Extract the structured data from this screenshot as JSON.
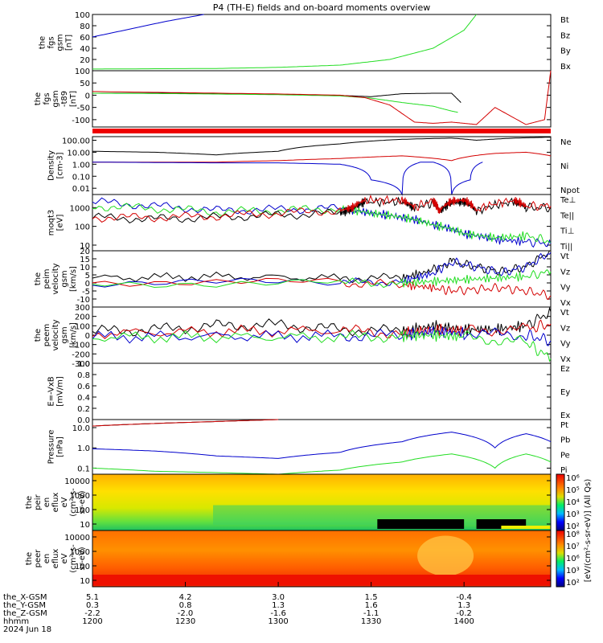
{
  "title": "P4 (TH-E) fields and on-board moments overview",
  "date": "2024 Jun 18",
  "colors": {
    "black": "#000000",
    "red": "#d40000",
    "green": "#22dd22",
    "blue": "#0000cc"
  },
  "chart_data": {
    "type": "line",
    "x_axis": {
      "times": [
        "1200",
        "1230",
        "1300",
        "1330",
        "1400"
      ],
      "rows": [
        {
          "label": "the_X-GSM",
          "values": [
            "5.1",
            "4.2",
            "3.0",
            "1.5",
            "-0.4"
          ]
        },
        {
          "label": "the_Y-GSM",
          "values": [
            "0.3",
            "0.8",
            "1.3",
            "1.6",
            "1.3"
          ]
        },
        {
          "label": "the_Z-GSM",
          "values": [
            "-2.2",
            "-2.0",
            "-1.6",
            "-1.1",
            "-0.2"
          ]
        },
        {
          "label": "hhmm",
          "values": [
            "1200",
            "1230",
            "1300",
            "1330",
            "1400"
          ]
        }
      ]
    },
    "panels": [
      {
        "id": "fgs",
        "ylabel": [
          "the",
          "fgs",
          "gsm",
          "[nT]"
        ],
        "ylim": [
          0,
          100
        ],
        "ticks": [
          "100",
          "80",
          "60",
          "40",
          "20"
        ],
        "legend": [
          {
            "name": "Bt",
            "color": "black"
          },
          {
            "name": "Bz",
            "color": "red"
          },
          {
            "name": "By",
            "color": "green"
          },
          {
            "name": "Bx",
            "color": "blue"
          }
        ],
        "series": [
          {
            "name": "Bx",
            "color": "blue",
            "t": [
              0,
              6,
              12,
              18
            ],
            "y": [
              60,
              74,
              88,
              100
            ]
          },
          {
            "name": "By",
            "color": "green",
            "t": [
              0,
              20,
              30,
              40,
              48,
              55,
              60,
              62
            ],
            "y": [
              3,
              4,
              6,
              10,
              20,
              40,
              72,
              100
            ]
          }
        ]
      },
      {
        "id": "fgs_dsl",
        "ylabel": [
          "the",
          "fgs",
          "gsm",
          "-t89",
          "[nT]"
        ],
        "ylim": [
          -130,
          100
        ],
        "ticks": [
          "100",
          "50",
          "0",
          "-50",
          "-100"
        ],
        "series": [
          {
            "name": "Bt",
            "color": "black",
            "t": [
              0,
              15,
              30,
              40,
              45,
              50,
              55,
              58,
              59.5
            ],
            "y": [
              8,
              8,
              3,
              -1,
              -6,
              6,
              8,
              8,
              -30
            ]
          },
          {
            "name": "By",
            "color": "green",
            "t": [
              0,
              15,
              30,
              40,
              45,
              50,
              55,
              58,
              59
            ],
            "y": [
              8,
              6,
              2,
              -3,
              -12,
              -30,
              -45,
              -65,
              -70
            ]
          },
          {
            "name": "Bz",
            "color": "red",
            "t": [
              0,
              15,
              30,
              40,
              44,
              48,
              52,
              55,
              58,
              62,
              65,
              70,
              73,
              74
            ],
            "y": [
              15,
              10,
              5,
              0,
              -10,
              -40,
              -110,
              -115,
              -110,
              -120,
              -50,
              -120,
              -100,
              100
            ]
          }
        ]
      },
      {
        "id": "density",
        "ylabel": [
          "Density",
          "[cm-3]"
        ],
        "log": true,
        "ylim": [
          0.003,
          200
        ],
        "ticks": [
          "100.00",
          "10.00",
          "1.00",
          "0.10",
          "0.01"
        ],
        "legend": [
          {
            "name": "Ne",
            "color": "red"
          },
          {
            "name": "Ni",
            "color": "black"
          },
          {
            "name": "Npot",
            "color": "blue"
          }
        ],
        "series": [
          {
            "name": "Ni",
            "color": "black",
            "t": [
              0,
              10,
              20,
              30,
              40,
              50,
              58,
              62,
              68,
              74
            ],
            "y": [
              12,
              10,
              6,
              12,
              50,
              120,
              150,
              100,
              150,
              180
            ]
          },
          {
            "name": "Ne",
            "color": "red",
            "t": [
              0,
              10,
              20,
              30,
              40,
              50,
              58,
              65,
              70,
              74
            ],
            "y": [
              1.5,
              1.5,
              1.5,
              2,
              3,
              5,
              2,
              8,
              10,
              5
            ]
          },
          {
            "name": "Npot",
            "color": "blue",
            "t": [
              0,
              20,
              30,
              40,
              45,
              50,
              53,
              55,
              58,
              61,
              63
            ],
            "y": [
              1.5,
              1.3,
              1.3,
              1,
              0.05,
              0.003,
              1.5,
              1.5,
              0.003,
              0.05,
              1.5
            ]
          }
        ]
      },
      {
        "id": "temp",
        "ylabel": [
          "moqt3",
          "[eV]"
        ],
        "log": true,
        "ylim": [
          5,
          5000
        ],
        "ticks": [
          "1000",
          "100",
          "10"
        ],
        "legend": [
          {
            "name": "Te⊥",
            "color": "red"
          },
          {
            "name": "Te||",
            "color": "black"
          },
          {
            "name": "Ti⊥",
            "color": "blue"
          },
          {
            "name": "Ti||",
            "color": "green"
          }
        ],
        "series": [
          {
            "name": "Ti⊥",
            "color": "blue",
            "t": [
              0,
              10,
              20,
              30,
              40,
              45,
              50,
              55,
              60,
              65,
              70,
              74
            ],
            "y": [
              2000,
              1200,
              700,
              800,
              900,
              500,
              300,
              120,
              40,
              20,
              15,
              12
            ]
          },
          {
            "name": "Ti||",
            "color": "green",
            "t": [
              0,
              10,
              20,
              30,
              40,
              45,
              50,
              55,
              60,
              65,
              70,
              74
            ],
            "y": [
              1200,
              900,
              600,
              700,
              900,
              500,
              300,
              120,
              40,
              25,
              30,
              15
            ]
          },
          {
            "name": "Te||",
            "color": "black",
            "t": [
              0,
              10,
              20,
              30,
              40,
              42,
              44,
              50,
              52,
              55,
              56,
              58,
              60,
              62,
              68,
              70,
              74
            ],
            "y": [
              300,
              250,
              300,
              400,
              500,
              800,
              2000,
              2000,
              900,
              1800,
              500,
              1800,
              2000,
              600,
              2000,
              1000,
              1000
            ]
          },
          {
            "name": "Te⊥",
            "color": "red",
            "t": [
              0,
              10,
              20,
              30,
              40,
              42,
              44,
              50,
              52,
              55,
              56,
              58,
              60,
              62,
              68,
              70,
              74
            ],
            "y": [
              300,
              300,
              350,
              500,
              700,
              1000,
              2500,
              2500,
              1000,
              2200,
              600,
              2200,
              2500,
              700,
              2500,
              1200,
              1200
            ]
          }
        ]
      },
      {
        "id": "peim",
        "ylabel": [
          "the",
          "peim",
          "velocity",
          "gsm",
          "[km/s]"
        ],
        "ylim": [
          -15,
          20
        ],
        "ticks": [
          "20",
          "15",
          "10",
          "5",
          "0",
          "-5",
          "-10"
        ],
        "legend": [
          {
            "name": "Vt",
            "color": "black"
          },
          {
            "name": "Vz",
            "color": "red"
          },
          {
            "name": "Vy",
            "color": "green"
          },
          {
            "name": "Vx",
            "color": "blue"
          }
        ],
        "series": [
          {
            "name": "Vt",
            "color": "black",
            "t": [
              0,
              20,
              40,
              50,
              55,
              58,
              62,
              66,
              70,
              74
            ],
            "y": [
              3,
              4,
              3,
              3,
              8,
              13,
              10,
              7,
              10,
              20
            ]
          },
          {
            "name": "Vx",
            "color": "blue",
            "t": [
              0,
              40,
              50,
              55,
              58,
              62,
              66,
              70,
              74
            ],
            "y": [
              0,
              0,
              1,
              6,
              13,
              10,
              6,
              10,
              19
            ]
          },
          {
            "name": "Vz",
            "color": "red",
            "t": [
              0,
              40,
              50,
              55,
              58,
              62,
              66,
              70,
              74
            ],
            "y": [
              1,
              0,
              -1,
              -3,
              -5,
              -4,
              -3,
              -5,
              -8
            ]
          },
          {
            "name": "Vy",
            "color": "green",
            "t": [
              0,
              40,
              50,
              55,
              60,
              65,
              70,
              74
            ],
            "y": [
              0,
              0,
              0,
              1,
              2,
              3,
              4,
              7
            ]
          }
        ]
      },
      {
        "id": "peem",
        "ylabel": [
          "the",
          "peem",
          "velocity",
          "gsm",
          "[km/s]"
        ],
        "ylim": [
          -300,
          300
        ],
        "ticks": [
          "300",
          "200",
          "100",
          "0",
          "-100",
          "-200",
          "-300"
        ],
        "legend": [
          {
            "name": "Vt",
            "color": "black"
          },
          {
            "name": "Vz",
            "color": "red"
          },
          {
            "name": "Vy",
            "color": "green"
          },
          {
            "name": "Vx",
            "color": "blue"
          }
        ],
        "series": [
          {
            "name": "Vt",
            "color": "black",
            "t": [
              0,
              10,
              20,
              30,
              40,
              50,
              55,
              60,
              65,
              70,
              74
            ],
            "y": [
              40,
              60,
              100,
              110,
              60,
              40,
              100,
              60,
              60,
              100,
              250
            ]
          },
          {
            "name": "Vz",
            "color": "red",
            "t": [
              0,
              20,
              40,
              50,
              55,
              60,
              70,
              74
            ],
            "y": [
              20,
              40,
              50,
              20,
              60,
              50,
              60,
              120
            ]
          },
          {
            "name": "Vx",
            "color": "blue",
            "t": [
              0,
              20,
              40,
              50,
              55,
              60,
              70,
              74
            ],
            "y": [
              -20,
              -10,
              -10,
              0,
              40,
              20,
              0,
              -60
            ]
          },
          {
            "name": "Vy",
            "color": "green",
            "t": [
              0,
              20,
              40,
              50,
              55,
              60,
              70,
              74
            ],
            "y": [
              -20,
              -20,
              -20,
              -10,
              0,
              -20,
              -80,
              -250
            ]
          }
        ]
      },
      {
        "id": "efield",
        "ylabel": [
          "E=-VxB",
          "[mV/m]"
        ],
        "ylim": [
          0,
          1
        ],
        "ticks": [
          "1.0",
          "0.8",
          "0.6",
          "0.4",
          "0.2",
          "0.0"
        ],
        "legend": [
          {
            "name": "Ez",
            "color": "red"
          },
          {
            "name": "Ey",
            "color": "green"
          },
          {
            "name": "Ex",
            "color": "blue"
          }
        ],
        "series": []
      },
      {
        "id": "pressure",
        "ylabel": [
          "Pressure",
          "[nPa]"
        ],
        "log": true,
        "ylim": [
          0.05,
          25
        ],
        "ticks": [
          "10.0",
          "1.0",
          "0.1"
        ],
        "legend": [
          {
            "name": "Pt",
            "color": "black"
          },
          {
            "name": "Pb",
            "color": "red"
          },
          {
            "name": "Pe",
            "color": "green"
          },
          {
            "name": "Pi",
            "color": "blue"
          }
        ],
        "series": [
          {
            "name": "Pt",
            "color": "black",
            "t": [
              0,
              10,
              20,
              30
            ],
            "y": [
              12,
              16,
              20,
              25
            ]
          },
          {
            "name": "Pb",
            "color": "red",
            "t": [
              0,
              10,
              20,
              30
            ],
            "y": [
              12,
              16,
              20,
              25
            ]
          },
          {
            "name": "Pi",
            "color": "blue",
            "t": [
              0,
              10,
              20,
              30,
              40,
              50,
              58,
              65,
              70,
              74
            ],
            "y": [
              0.9,
              0.7,
              0.4,
              0.3,
              0.6,
              2,
              6,
              1,
              5,
              2
            ]
          },
          {
            "name": "Pe",
            "color": "green",
            "t": [
              0,
              10,
              20,
              30,
              40,
              50,
              58,
              65,
              70,
              74
            ],
            "y": [
              0.1,
              0.07,
              0.06,
              0.05,
              0.08,
              0.2,
              0.5,
              0.1,
              0.5,
              0.2
            ]
          }
        ]
      },
      {
        "id": "peir",
        "type": "heatmap",
        "ylabel": [
          "the",
          "peir",
          "en",
          "eflux",
          "eV",
          "(cm²-s-",
          "sr-eV)"
        ],
        "ticks": [
          "10000",
          "1000",
          "100",
          "10"
        ],
        "colorbar_ticks": [
          "10⁶",
          "10⁵",
          "10⁴",
          "10³",
          "10²"
        ]
      },
      {
        "id": "peer",
        "type": "heatmap",
        "ylabel": [
          "the",
          "peer",
          "en",
          "eflux",
          "eV",
          "(cm²-s-",
          "sr-eV)"
        ],
        "ticks": [
          "10000",
          "1000",
          "100",
          "10"
        ],
        "colorbar_ticks": [
          "10⁸",
          "10⁷",
          "10⁶",
          "10³",
          "10²"
        ],
        "colorbar_label": "[eV/(cm²-s-sr-eV)] (All Qs)"
      }
    ]
  }
}
